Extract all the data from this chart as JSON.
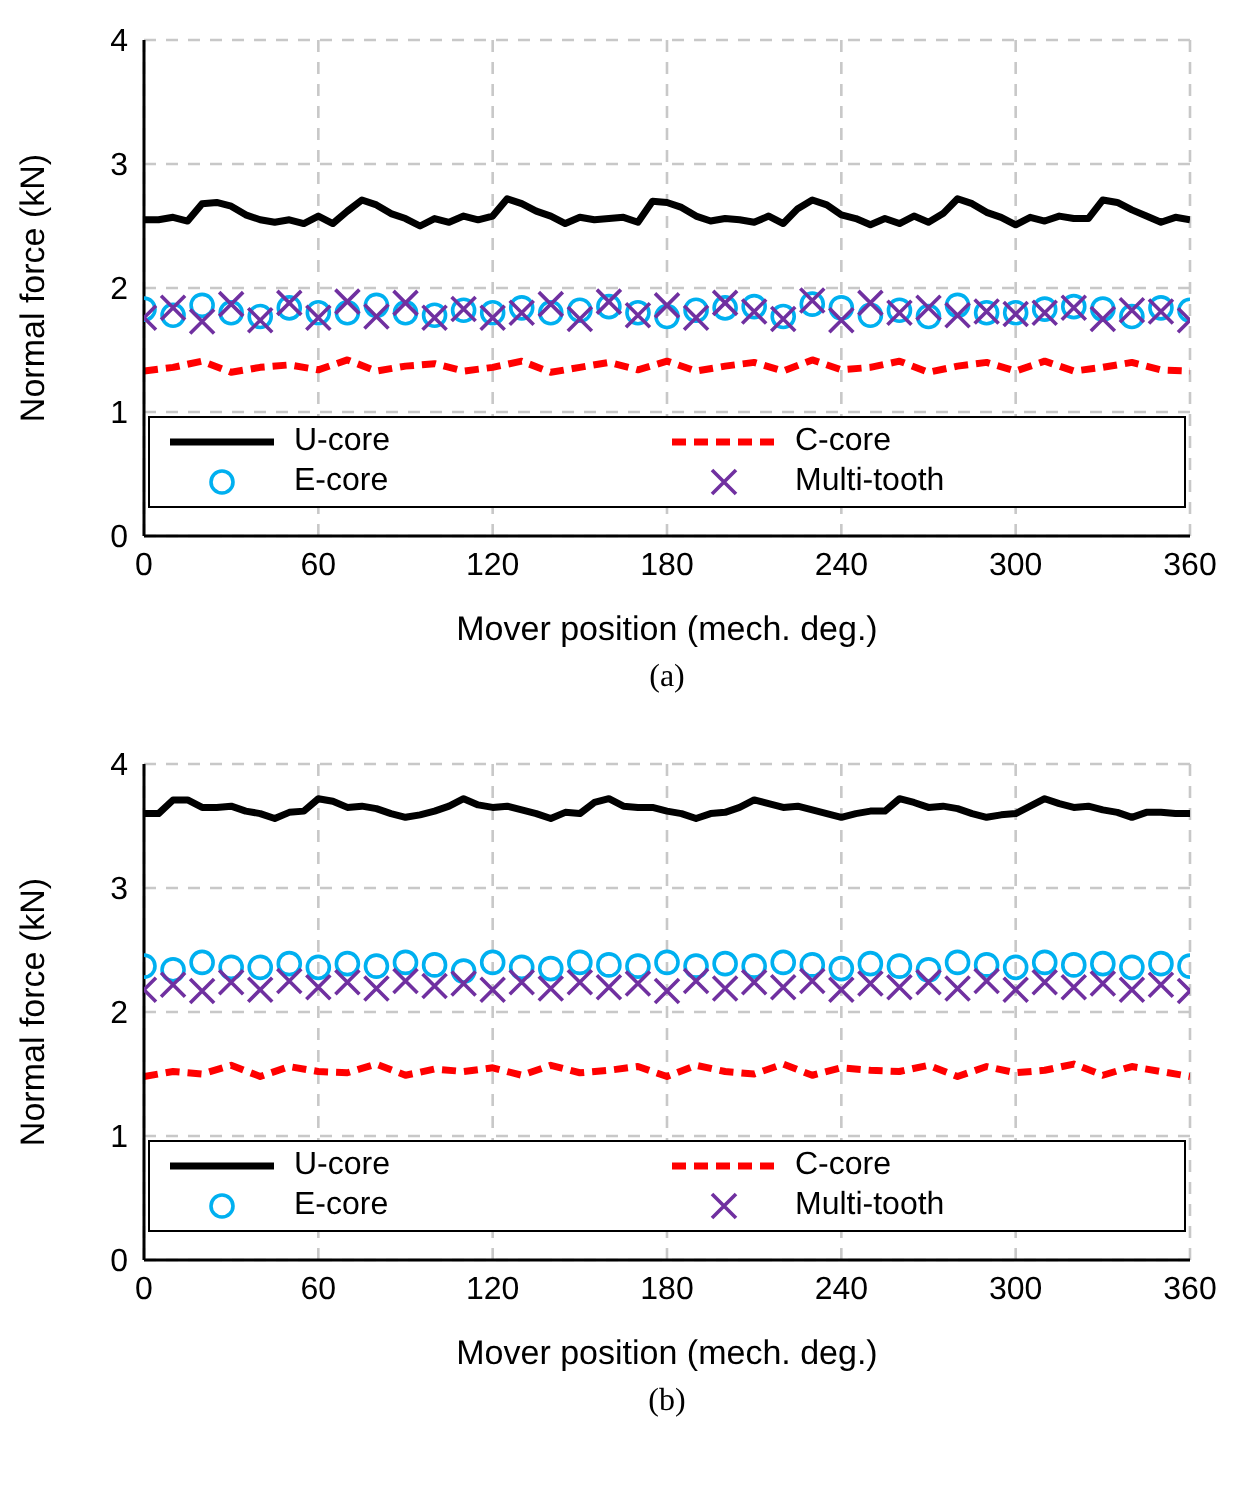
{
  "chart_data": [
    {
      "type": "line",
      "xlabel": "Mover position (mech. deg.)",
      "ylabel": "Normal force (kN)",
      "annotations": [
        "(a)"
      ],
      "xlim": [
        0,
        360
      ],
      "xticks": [
        0,
        60,
        120,
        180,
        240,
        300,
        360
      ],
      "ylim": [
        0,
        4
      ],
      "yticks": [
        0,
        1,
        2,
        3,
        4
      ],
      "grid": true,
      "legend": "bottom",
      "series": [
        {
          "name": "U-core",
          "line_style": "solid",
          "color": "#000000",
          "x": [
            0,
            5,
            10,
            15,
            20,
            25,
            30,
            35,
            40,
            45,
            50,
            55,
            60,
            65,
            70,
            75,
            80,
            85,
            90,
            95,
            100,
            105,
            110,
            115,
            120,
            125,
            130,
            135,
            140,
            145,
            150,
            155,
            160,
            165,
            170,
            175,
            180,
            185,
            190,
            195,
            200,
            205,
            210,
            215,
            220,
            225,
            230,
            235,
            240,
            245,
            250,
            255,
            260,
            265,
            270,
            275,
            280,
            285,
            290,
            295,
            300,
            305,
            310,
            315,
            320,
            325,
            330,
            335,
            340,
            345,
            350,
            355,
            360
          ],
          "values": [
            2.55,
            2.55,
            2.57,
            2.54,
            2.68,
            2.69,
            2.66,
            2.59,
            2.55,
            2.53,
            2.55,
            2.52,
            2.58,
            2.52,
            2.62,
            2.71,
            2.67,
            2.6,
            2.56,
            2.5,
            2.56,
            2.53,
            2.58,
            2.55,
            2.58,
            2.72,
            2.68,
            2.62,
            2.58,
            2.52,
            2.57,
            2.55,
            2.56,
            2.57,
            2.53,
            2.7,
            2.69,
            2.65,
            2.58,
            2.54,
            2.56,
            2.55,
            2.53,
            2.58,
            2.52,
            2.64,
            2.71,
            2.67,
            2.59,
            2.56,
            2.51,
            2.56,
            2.52,
            2.58,
            2.53,
            2.6,
            2.72,
            2.68,
            2.61,
            2.57,
            2.51,
            2.57,
            2.54,
            2.58,
            2.56,
            2.56,
            2.71,
            2.69,
            2.63,
            2.58,
            2.53,
            2.57,
            2.55
          ]
        },
        {
          "name": "C-core",
          "line_style": "dashed",
          "color": "#ff0000",
          "x": [
            0,
            10,
            20,
            30,
            40,
            50,
            60,
            70,
            80,
            90,
            100,
            110,
            120,
            130,
            140,
            150,
            160,
            170,
            180,
            190,
            200,
            210,
            220,
            230,
            240,
            250,
            260,
            270,
            280,
            290,
            300,
            310,
            320,
            330,
            340,
            350,
            360
          ],
          "values": [
            1.33,
            1.36,
            1.41,
            1.32,
            1.36,
            1.38,
            1.34,
            1.42,
            1.33,
            1.37,
            1.39,
            1.33,
            1.36,
            1.41,
            1.32,
            1.36,
            1.4,
            1.34,
            1.41,
            1.33,
            1.37,
            1.4,
            1.33,
            1.42,
            1.34,
            1.36,
            1.41,
            1.32,
            1.37,
            1.4,
            1.33,
            1.41,
            1.33,
            1.36,
            1.4,
            1.34,
            1.33
          ]
        },
        {
          "name": "E-core",
          "type": "scatter",
          "marker": "circle",
          "color": "#00b0f0",
          "x": [
            0,
            10,
            20,
            30,
            40,
            50,
            60,
            70,
            80,
            90,
            100,
            110,
            120,
            130,
            140,
            150,
            160,
            170,
            180,
            190,
            200,
            210,
            220,
            230,
            240,
            250,
            260,
            270,
            280,
            290,
            300,
            310,
            320,
            330,
            340,
            350,
            360
          ],
          "values": [
            1.83,
            1.78,
            1.86,
            1.8,
            1.77,
            1.84,
            1.8,
            1.8,
            1.86,
            1.8,
            1.78,
            1.82,
            1.8,
            1.84,
            1.8,
            1.82,
            1.85,
            1.8,
            1.77,
            1.82,
            1.84,
            1.85,
            1.77,
            1.87,
            1.84,
            1.78,
            1.82,
            1.77,
            1.86,
            1.8,
            1.8,
            1.83,
            1.85,
            1.83,
            1.77,
            1.84,
            1.82
          ]
        },
        {
          "name": "Multi-tooth",
          "type": "scatter",
          "marker": "cross",
          "color": "#7030a0",
          "x": [
            0,
            10,
            20,
            30,
            40,
            50,
            60,
            70,
            80,
            90,
            100,
            110,
            120,
            130,
            140,
            150,
            160,
            170,
            180,
            190,
            200,
            210,
            220,
            230,
            240,
            250,
            260,
            270,
            280,
            290,
            300,
            310,
            320,
            330,
            340,
            350,
            360
          ],
          "values": [
            1.76,
            1.84,
            1.73,
            1.87,
            1.74,
            1.88,
            1.76,
            1.89,
            1.77,
            1.88,
            1.76,
            1.83,
            1.76,
            1.8,
            1.87,
            1.75,
            1.89,
            1.78,
            1.86,
            1.76,
            1.88,
            1.81,
            1.75,
            1.9,
            1.74,
            1.88,
            1.8,
            1.84,
            1.78,
            1.81,
            1.79,
            1.8,
            1.84,
            1.75,
            1.82,
            1.81,
            1.74
          ]
        }
      ]
    },
    {
      "type": "line",
      "xlabel": "Mover position (mech. deg.)",
      "ylabel": "Normal force (kN)",
      "annotations": [
        "(b)"
      ],
      "xlim": [
        0,
        360
      ],
      "xticks": [
        0,
        60,
        120,
        180,
        240,
        300,
        360
      ],
      "ylim": [
        0,
        4
      ],
      "yticks": [
        0,
        1,
        2,
        3,
        4
      ],
      "grid": true,
      "legend": "bottom",
      "series": [
        {
          "name": "U-core",
          "line_style": "solid",
          "color": "#000000",
          "x": [
            0,
            5,
            10,
            15,
            20,
            25,
            30,
            35,
            40,
            45,
            50,
            55,
            60,
            65,
            70,
            75,
            80,
            85,
            90,
            95,
            100,
            105,
            110,
            115,
            120,
            125,
            130,
            135,
            140,
            145,
            150,
            155,
            160,
            165,
            170,
            175,
            180,
            185,
            190,
            195,
            200,
            205,
            210,
            215,
            220,
            225,
            230,
            235,
            240,
            245,
            250,
            255,
            260,
            265,
            270,
            275,
            280,
            285,
            290,
            295,
            300,
            305,
            310,
            315,
            320,
            325,
            330,
            335,
            340,
            345,
            350,
            355,
            360
          ],
          "values": [
            3.6,
            3.6,
            3.71,
            3.71,
            3.65,
            3.65,
            3.66,
            3.62,
            3.6,
            3.56,
            3.61,
            3.62,
            3.72,
            3.7,
            3.65,
            3.66,
            3.64,
            3.6,
            3.57,
            3.59,
            3.62,
            3.66,
            3.72,
            3.67,
            3.65,
            3.66,
            3.63,
            3.6,
            3.56,
            3.61,
            3.6,
            3.69,
            3.72,
            3.66,
            3.65,
            3.65,
            3.62,
            3.6,
            3.56,
            3.6,
            3.61,
            3.65,
            3.71,
            3.68,
            3.65,
            3.66,
            3.63,
            3.6,
            3.57,
            3.6,
            3.62,
            3.62,
            3.72,
            3.69,
            3.65,
            3.66,
            3.64,
            3.6,
            3.57,
            3.59,
            3.6,
            3.66,
            3.72,
            3.68,
            3.65,
            3.66,
            3.63,
            3.61,
            3.57,
            3.61,
            3.61,
            3.6,
            3.6
          ]
        },
        {
          "name": "C-core",
          "line_style": "dashed",
          "color": "#ff0000",
          "x": [
            0,
            10,
            20,
            30,
            40,
            50,
            60,
            70,
            80,
            90,
            100,
            110,
            120,
            130,
            140,
            150,
            160,
            170,
            180,
            190,
            200,
            210,
            220,
            230,
            240,
            250,
            260,
            270,
            280,
            290,
            300,
            310,
            320,
            330,
            340,
            350,
            360
          ],
          "values": [
            1.48,
            1.52,
            1.5,
            1.57,
            1.48,
            1.56,
            1.52,
            1.51,
            1.58,
            1.49,
            1.54,
            1.52,
            1.55,
            1.49,
            1.57,
            1.51,
            1.53,
            1.56,
            1.48,
            1.57,
            1.52,
            1.5,
            1.58,
            1.49,
            1.55,
            1.53,
            1.52,
            1.57,
            1.48,
            1.56,
            1.51,
            1.53,
            1.58,
            1.49,
            1.56,
            1.52,
            1.48
          ]
        },
        {
          "name": "E-core",
          "type": "scatter",
          "marker": "circle",
          "color": "#00b0f0",
          "x": [
            0,
            10,
            20,
            30,
            40,
            50,
            60,
            70,
            80,
            90,
            100,
            110,
            120,
            130,
            140,
            150,
            160,
            170,
            180,
            190,
            200,
            210,
            220,
            230,
            240,
            250,
            260,
            270,
            280,
            290,
            300,
            310,
            320,
            330,
            340,
            350,
            360
          ],
          "values": [
            2.37,
            2.34,
            2.4,
            2.36,
            2.36,
            2.39,
            2.36,
            2.39,
            2.37,
            2.4,
            2.38,
            2.33,
            2.4,
            2.36,
            2.35,
            2.4,
            2.38,
            2.37,
            2.4,
            2.37,
            2.39,
            2.37,
            2.4,
            2.38,
            2.35,
            2.39,
            2.37,
            2.34,
            2.4,
            2.38,
            2.36,
            2.4,
            2.38,
            2.39,
            2.36,
            2.39,
            2.37
          ]
        },
        {
          "name": "Multi-tooth",
          "type": "scatter",
          "marker": "cross",
          "color": "#7030a0",
          "x": [
            0,
            10,
            20,
            30,
            40,
            50,
            60,
            70,
            80,
            90,
            100,
            110,
            120,
            130,
            140,
            150,
            160,
            170,
            180,
            190,
            200,
            210,
            220,
            230,
            240,
            250,
            260,
            270,
            280,
            290,
            300,
            310,
            320,
            330,
            340,
            350,
            360
          ],
          "values": [
            2.18,
            2.22,
            2.17,
            2.24,
            2.18,
            2.25,
            2.2,
            2.24,
            2.19,
            2.25,
            2.21,
            2.23,
            2.18,
            2.24,
            2.19,
            2.24,
            2.2,
            2.23,
            2.17,
            2.25,
            2.19,
            2.24,
            2.2,
            2.25,
            2.18,
            2.23,
            2.2,
            2.24,
            2.19,
            2.25,
            2.18,
            2.24,
            2.2,
            2.23,
            2.18,
            2.22,
            2.17
          ]
        }
      ]
    }
  ]
}
